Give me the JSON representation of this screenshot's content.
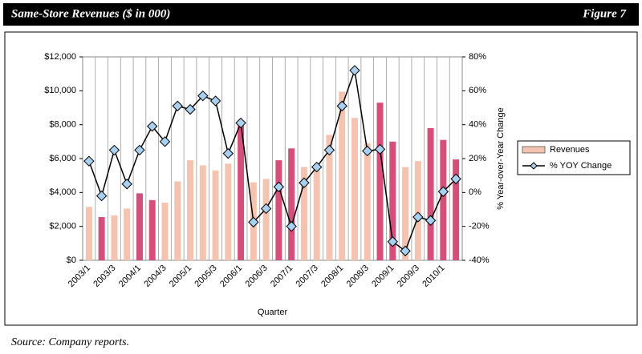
{
  "header": {
    "title": "Same-Store Revenues ($ in 000)",
    "figure": "Figure 7"
  },
  "footer": "Source: Company reports.",
  "chart_data": {
    "type": "bar-line",
    "xlabel": "Quarter",
    "y2label": "% Year-over-Year Change",
    "categories": [
      "2003/1",
      null,
      "2003/3",
      null,
      "2004/1",
      null,
      "2004/3",
      null,
      "2005/1",
      null,
      "2005/3",
      null,
      "2006/1",
      null,
      "2006/3",
      null,
      "2007/1",
      null,
      "2007/3",
      null,
      "2008/1",
      null,
      "2008/3",
      null,
      "2009/1",
      null,
      "2009/3",
      null,
      "2010/1",
      null
    ],
    "series": [
      {
        "name": "Revenues",
        "type": "bar",
        "color": "#f4c4b0",
        "colors": [
          "#f4c4b0",
          "#d4507a",
          "#f4c4b0",
          "#f4c4b0",
          "#d4507a",
          "#d4507a",
          "#f4c4b0",
          "#f4c4b0",
          "#f4c4b0",
          "#f4c4b0",
          "#f4c4b0",
          "#f4c4b0",
          "#d4507a",
          "#f4c4b0",
          "#f4c4b0",
          "#d4507a",
          "#d4507a",
          "#f4c4b0",
          "#f4c4b0",
          "#f4c4b0",
          "#f4c4b0",
          "#f4c4b0",
          "#f4c4b0",
          "#d4507a",
          "#d4507a",
          "#f4c4b0",
          "#f4c4b0",
          "#d4507a",
          "#d4507a",
          "#d4507a"
        ],
        "values": [
          3150,
          2550,
          2650,
          3050,
          3950,
          3550,
          3400,
          4650,
          5900,
          5600,
          5300,
          5700,
          7950,
          4600,
          4800,
          5900,
          6600,
          5500,
          5650,
          7400,
          9950,
          8400,
          6900,
          9300,
          7000,
          5500,
          5850,
          7800,
          7100,
          5950
        ]
      },
      {
        "name": "% YOY Change",
        "type": "line",
        "axis": "y2",
        "color": "#000000",
        "marker_color": "#a9d0f0",
        "values": [
          18.5,
          -2,
          25,
          5,
          25,
          39,
          30,
          51,
          49,
          57,
          54,
          23,
          41,
          -17.5,
          -9.5,
          3.3,
          -20,
          5.7,
          15,
          25,
          51,
          72,
          24.5,
          25.5,
          -29,
          -34.5,
          -14.5,
          -16.5,
          0.5,
          8
        ]
      }
    ],
    "ylim": [
      0,
      12000
    ],
    "yticks": [
      {
        "value": 0,
        "label": "$0"
      },
      {
        "value": 2000,
        "label": "$2,000"
      },
      {
        "value": 4000,
        "label": "$4,000"
      },
      {
        "value": 6000,
        "label": "$6,000"
      },
      {
        "value": 8000,
        "label": "$8,000"
      },
      {
        "value": 10000,
        "label": "$10,000"
      },
      {
        "value": 12000,
        "label": "$12,000"
      }
    ],
    "y2lim": [
      -40,
      80
    ],
    "y2ticks": [
      {
        "value": -40,
        "label": "-40%"
      },
      {
        "value": -20,
        "label": "-20%"
      },
      {
        "value": 0,
        "label": "0%"
      },
      {
        "value": 20,
        "label": "20%"
      },
      {
        "value": 40,
        "label": "40%"
      },
      {
        "value": 60,
        "label": "60%"
      },
      {
        "value": 80,
        "label": "80%"
      }
    ],
    "grid": "x",
    "legend": "right"
  }
}
